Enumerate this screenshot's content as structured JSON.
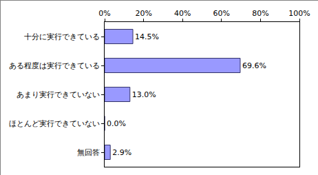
{
  "chart_data": {
    "type": "bar",
    "orientation": "horizontal",
    "categories": [
      "十分に実行できている",
      "ある程度は実行できている",
      "あまり実行できていない",
      "ほとんど実行できていない",
      "無回答"
    ],
    "values": [
      14.5,
      69.6,
      13.0,
      0.0,
      2.9
    ],
    "value_labels": [
      "14.5%",
      "69.6%",
      "13.0%",
      "0.0%",
      "2.9%"
    ],
    "data_labels": true,
    "color": "#9999ff",
    "xlim": [
      0,
      100
    ],
    "xticks": [
      {
        "value": 0,
        "label": "0%"
      },
      {
        "value": 20,
        "label": "20%"
      },
      {
        "value": 40,
        "label": "40%"
      },
      {
        "value": 60,
        "label": "60%"
      },
      {
        "value": 80,
        "label": "80%"
      },
      {
        "value": 100,
        "label": "100%"
      }
    ],
    "grid": false
  }
}
